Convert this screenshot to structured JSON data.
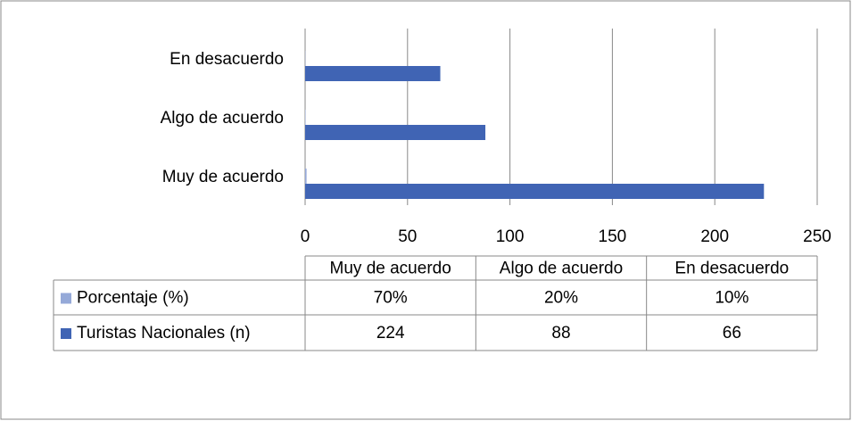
{
  "chart_data": {
    "type": "bar",
    "orientation": "horizontal",
    "categories": [
      "Muy de acuerdo",
      "Algo de acuerdo",
      "En desacuerdo"
    ],
    "series": [
      {
        "name": "Porcentaje (%)",
        "color": "#95a9d8",
        "values": [
          0.7,
          0.2,
          0.1
        ],
        "value_labels": [
          "70%",
          "20%",
          "10%"
        ]
      },
      {
        "name": "Turistas Nacionales (n)",
        "color": "#4064b4",
        "values": [
          224,
          88,
          66
        ]
      }
    ],
    "xlim": [
      0,
      250
    ],
    "xticks": [
      0,
      50,
      100,
      150,
      200,
      250
    ],
    "grid": true,
    "data_table": true
  }
}
